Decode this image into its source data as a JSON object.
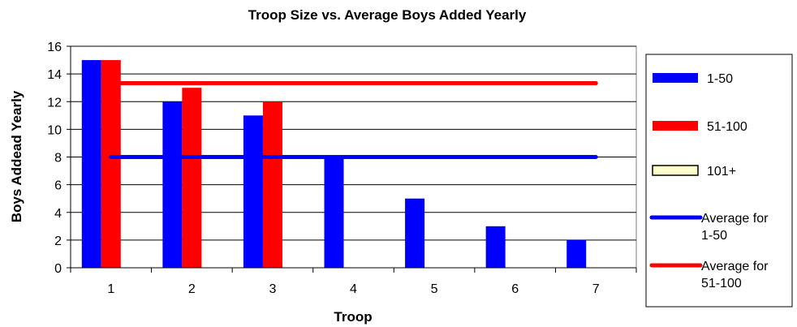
{
  "chart_data": {
    "type": "bar",
    "title": "Troop Size vs. Average Boys Added Yearly",
    "xlabel": "Troop",
    "ylabel": "Boys Addead Yearly",
    "categories": [
      "1",
      "2",
      "3",
      "4",
      "5",
      "6",
      "7"
    ],
    "ylim": [
      0,
      16
    ],
    "yticks": [
      "0",
      "2",
      "4",
      "6",
      "8",
      "10",
      "12",
      "14",
      "16"
    ],
    "grid": true,
    "legend_position": "right",
    "series": [
      {
        "name": "1-50",
        "kind": "bar",
        "color": "#0000ff",
        "values": [
          15,
          12,
          11,
          8,
          5,
          3,
          2
        ]
      },
      {
        "name": "51-100",
        "kind": "bar",
        "color": "#ff0000",
        "values": [
          15,
          13,
          12,
          null,
          null,
          null,
          null
        ]
      },
      {
        "name": "101+",
        "kind": "bar",
        "color": "#ffffcc",
        "values": [
          null,
          null,
          null,
          null,
          null,
          null,
          null
        ]
      },
      {
        "name": "Average for 1-50",
        "kind": "line",
        "color": "#0000ff",
        "values": [
          8,
          8,
          8,
          8,
          8,
          8,
          8
        ]
      },
      {
        "name": "Average for 51-100",
        "kind": "line",
        "color": "#ff0000",
        "values": [
          13.33,
          13.33,
          13.33,
          13.33,
          13.33,
          13.33,
          13.33
        ]
      }
    ],
    "legend": [
      {
        "lines": [
          "1-50"
        ]
      },
      {
        "lines": [
          "51-100"
        ]
      },
      {
        "lines": [
          "101+"
        ]
      },
      {
        "lines": [
          "Average for",
          "1-50"
        ]
      },
      {
        "lines": [
          "Average for",
          "51-100"
        ]
      }
    ]
  }
}
